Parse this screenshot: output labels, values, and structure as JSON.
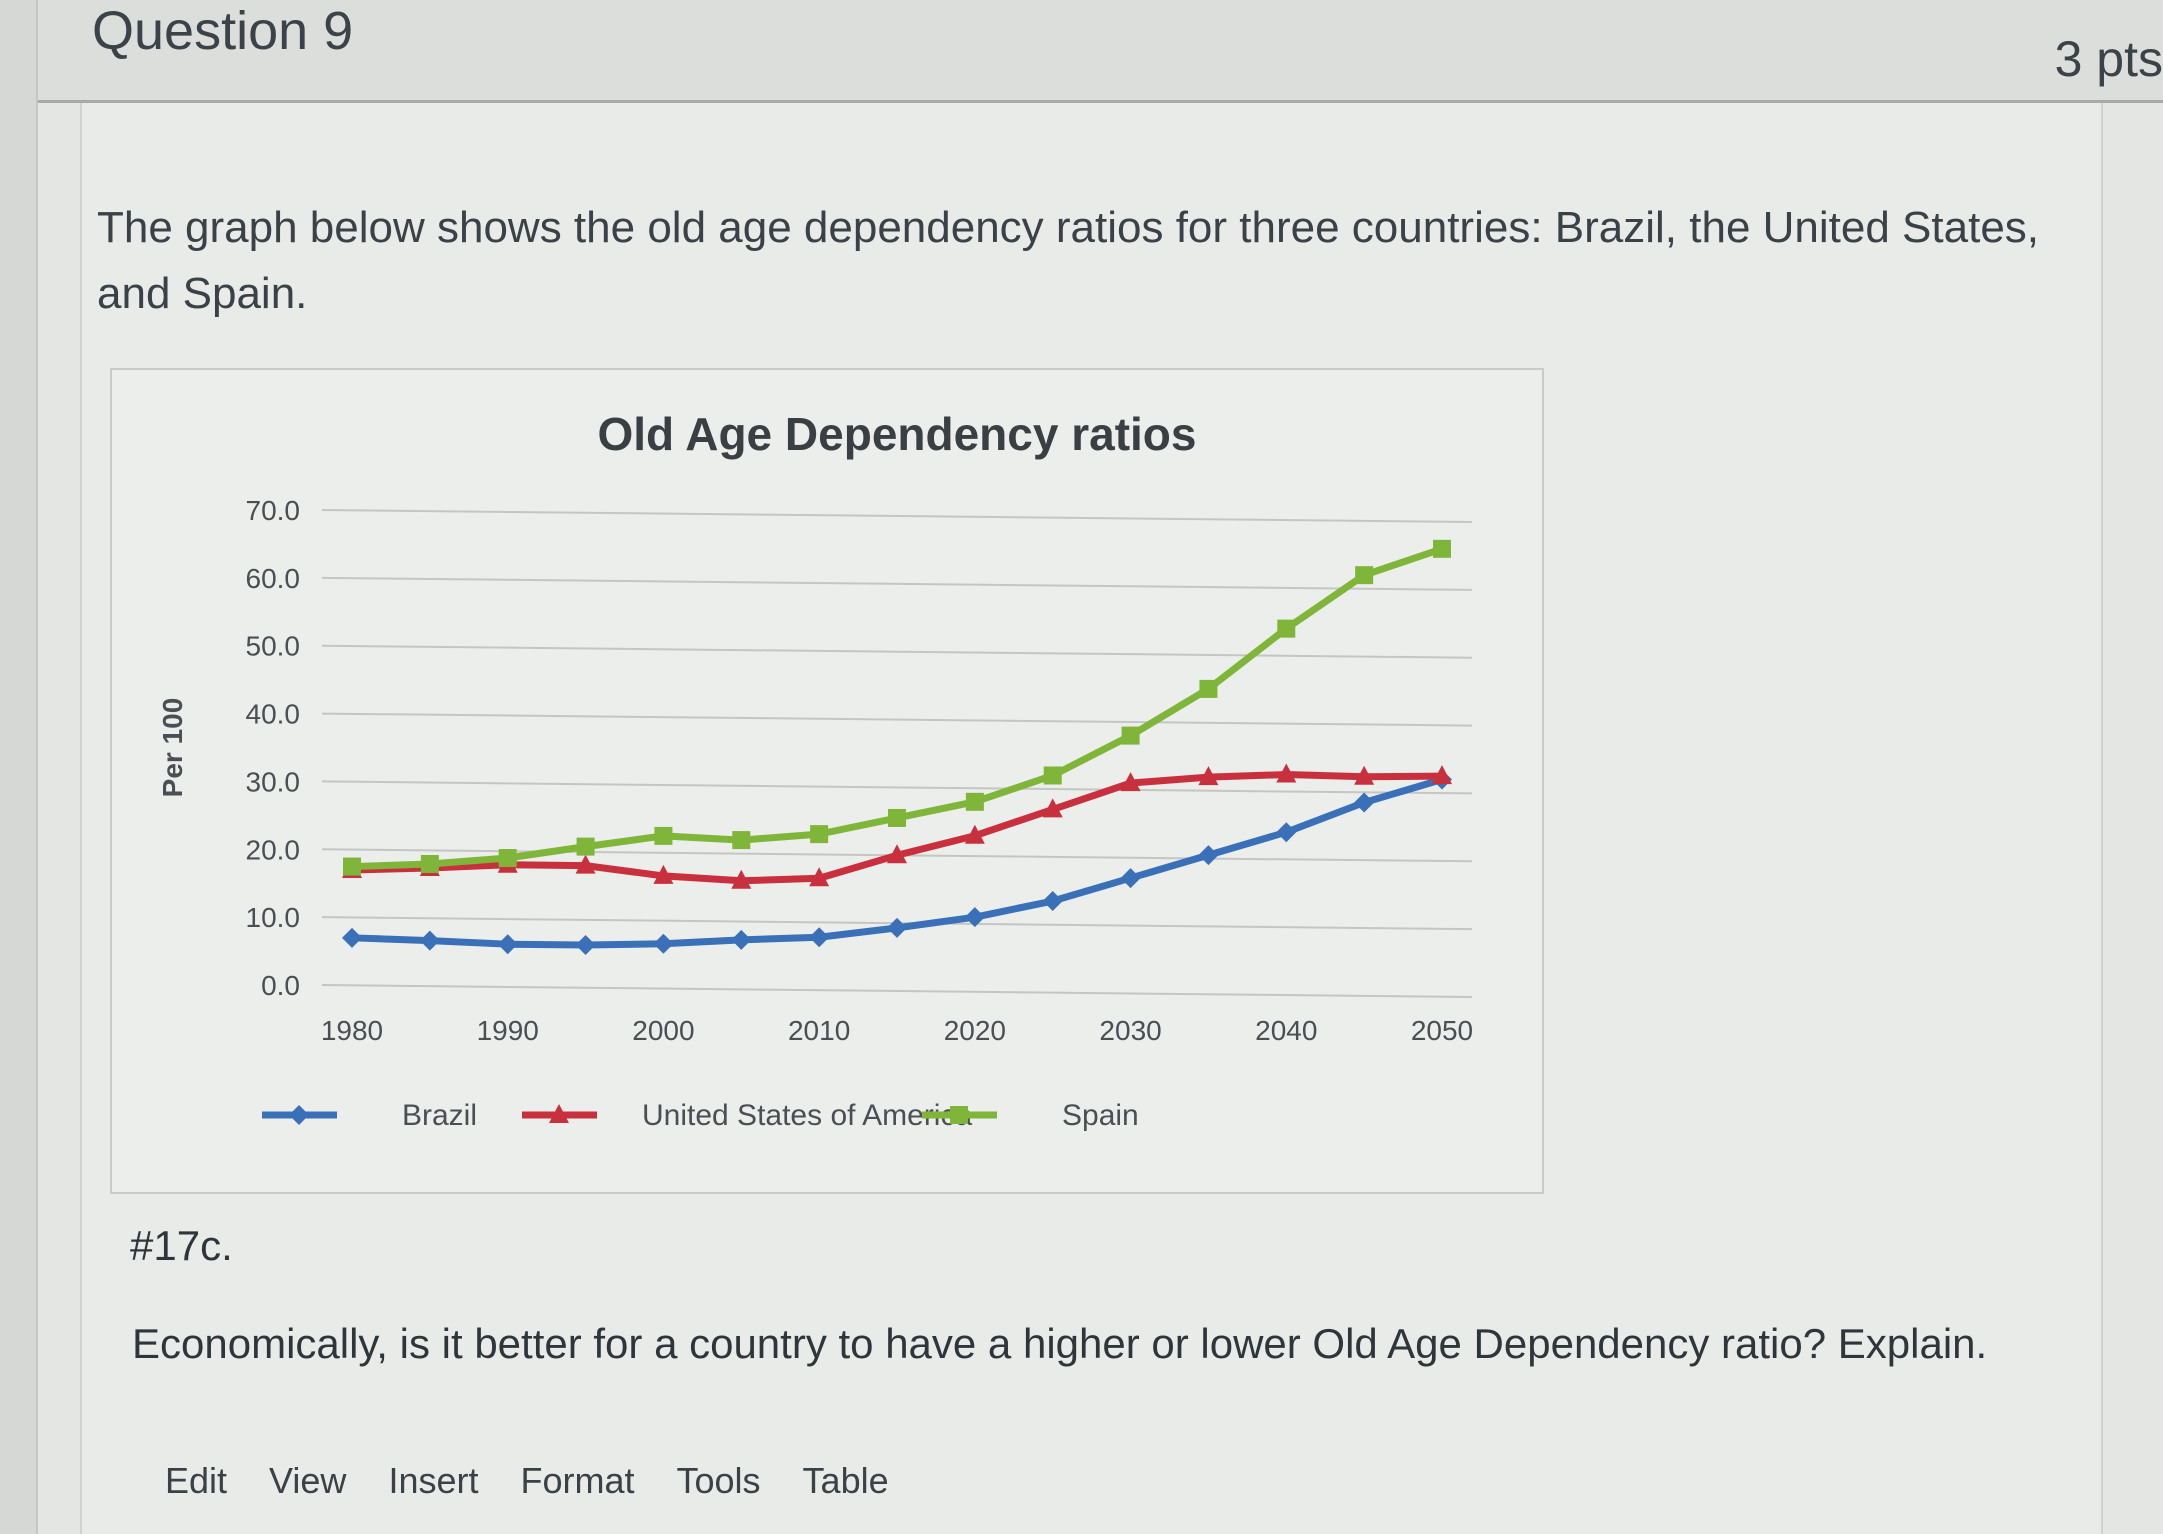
{
  "header": {
    "title": "Question 9",
    "points": "3 pts"
  },
  "intro": "The graph below shows the old age dependency ratios for three countries: Brazil, the United States, and Spain.",
  "chart_data": {
    "type": "line",
    "title": "Old Age Dependency ratios",
    "ylabel": "Per 100",
    "xlabel": "",
    "ylim": [
      0,
      70
    ],
    "yticks": [
      "0.0",
      "10.0",
      "20.0",
      "30.0",
      "40.0",
      "50.0",
      "60.0",
      "70.0"
    ],
    "x": [
      1980,
      1985,
      1990,
      1995,
      2000,
      2005,
      2010,
      2015,
      2020,
      2025,
      2030,
      2035,
      2040,
      2045,
      2050
    ],
    "xticks": [
      "1980",
      "1990",
      "2000",
      "2010",
      "2020",
      "2030",
      "2040",
      "2050"
    ],
    "grid": true,
    "legend": "bottom",
    "series": [
      {
        "name": "Brazil",
        "color": "#3a70b8",
        "marker": "diamond",
        "values": [
          7.0,
          6.7,
          6.3,
          6.3,
          6.6,
          7.3,
          7.8,
          9.3,
          11.0,
          13.5,
          17.0,
          20.5,
          24.0,
          28.5,
          32.0
        ]
      },
      {
        "name": "United States of America",
        "color": "#c9303e",
        "marker": "triangle",
        "values": [
          17.0,
          17.4,
          18.0,
          18.0,
          16.6,
          16.0,
          16.5,
          20.0,
          23.0,
          27.0,
          31.0,
          32.0,
          32.5,
          32.3,
          32.5
        ]
      },
      {
        "name": "Spain",
        "color": "#7fb63a",
        "marker": "square",
        "values": [
          17.5,
          18.0,
          19.0,
          20.8,
          22.5,
          22.0,
          23.0,
          25.5,
          28.0,
          32.0,
          38.0,
          45.0,
          54.0,
          62.0,
          66.0
        ]
      }
    ]
  },
  "followup_label": "#17c.",
  "question": "Economically, is it better for a country to have a higher or lower Old Age Dependency ratio? Explain.",
  "toolbar": [
    "Edit",
    "View",
    "Insert",
    "Format",
    "Tools",
    "Table"
  ]
}
